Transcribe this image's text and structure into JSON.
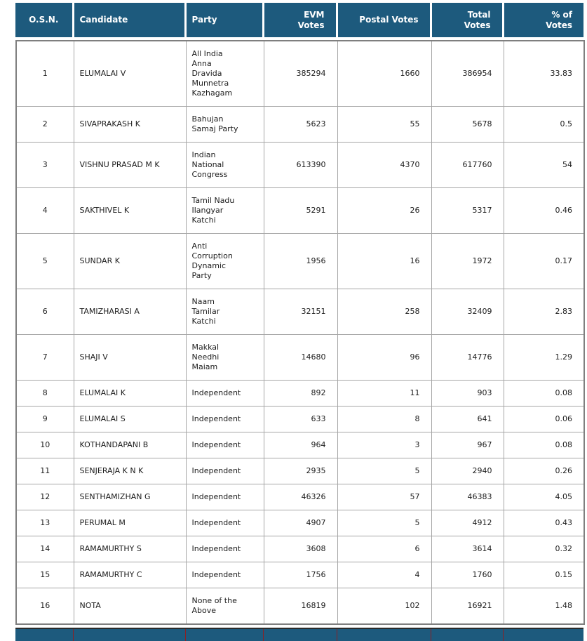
{
  "colors": {
    "header_bg": "#1d5a7d",
    "footer_bg": "#1d5a7d",
    "body_border_outer": "#7f7f7f",
    "body_border_inner": "#a6a6a6",
    "footer_divider": "#8b2126",
    "header_text": "#ffffff",
    "body_text": "#1c1c1c"
  },
  "table": {
    "headers": [
      "O.S.N.",
      "Candidate",
      "Party",
      "EVM\nVotes",
      "Postal Votes",
      "Total\nVotes",
      "% of\nVotes"
    ],
    "rows": [
      {
        "osn": "1",
        "candidate": "ELUMALAI V",
        "party": "All India\nAnna\nDravida\nMunnetra\nKazhagam",
        "evm": "385294",
        "postal": "1660",
        "total": "386954",
        "pct": "33.83"
      },
      {
        "osn": "2",
        "candidate": "SIVAPRAKASH K",
        "party": "Bahujan\nSamaj Party",
        "evm": "5623",
        "postal": "55",
        "total": "5678",
        "pct": "0.5"
      },
      {
        "osn": "3",
        "candidate": "VISHNU PRASAD M K",
        "party": "Indian\nNational\nCongress",
        "evm": "613390",
        "postal": "4370",
        "total": "617760",
        "pct": "54"
      },
      {
        "osn": "4",
        "candidate": "SAKTHIVEL K",
        "party": "Tamil Nadu\nIlangyar\nKatchi",
        "evm": "5291",
        "postal": "26",
        "total": "5317",
        "pct": "0.46"
      },
      {
        "osn": "5",
        "candidate": "SUNDAR K",
        "party": "Anti\nCorruption\nDynamic\nParty",
        "evm": "1956",
        "postal": "16",
        "total": "1972",
        "pct": "0.17"
      },
      {
        "osn": "6",
        "candidate": "TAMIZHARASI A",
        "party": "Naam\nTamilar\nKatchi",
        "evm": "32151",
        "postal": "258",
        "total": "32409",
        "pct": "2.83"
      },
      {
        "osn": "7",
        "candidate": "SHAJI V",
        "party": "Makkal\nNeedhi\nMaiam",
        "evm": "14680",
        "postal": "96",
        "total": "14776",
        "pct": "1.29"
      },
      {
        "osn": "8",
        "candidate": "ELUMALAI K",
        "party": "Independent",
        "evm": "892",
        "postal": "11",
        "total": "903",
        "pct": "0.08"
      },
      {
        "osn": "9",
        "candidate": "ELUMALAI S",
        "party": "Independent",
        "evm": "633",
        "postal": "8",
        "total": "641",
        "pct": "0.06"
      },
      {
        "osn": "10",
        "candidate": "KOTHANDAPANI B",
        "party": "Independent",
        "evm": "964",
        "postal": "3",
        "total": "967",
        "pct": "0.08"
      },
      {
        "osn": "11",
        "candidate": "SENJERAJA K N K",
        "party": "Independent",
        "evm": "2935",
        "postal": "5",
        "total": "2940",
        "pct": "0.26"
      },
      {
        "osn": "12",
        "candidate": "SENTHAMIZHAN G",
        "party": "Independent",
        "evm": "46326",
        "postal": "57",
        "total": "46383",
        "pct": "4.05"
      },
      {
        "osn": "13",
        "candidate": "PERUMAL M",
        "party": "Independent",
        "evm": "4907",
        "postal": "5",
        "total": "4912",
        "pct": "0.43"
      },
      {
        "osn": "14",
        "candidate": "RAMAMURTHY S",
        "party": "Independent",
        "evm": "3608",
        "postal": "6",
        "total": "3614",
        "pct": "0.32"
      },
      {
        "osn": "15",
        "candidate": "RAMAMURTHY C",
        "party": "Independent",
        "evm": "1756",
        "postal": "4",
        "total": "1760",
        "pct": "0.15"
      },
      {
        "osn": "16",
        "candidate": "NOTA",
        "party": "None of the\nAbove",
        "evm": "16819",
        "postal": "102",
        "total": "16921",
        "pct": "1.48"
      }
    ]
  }
}
